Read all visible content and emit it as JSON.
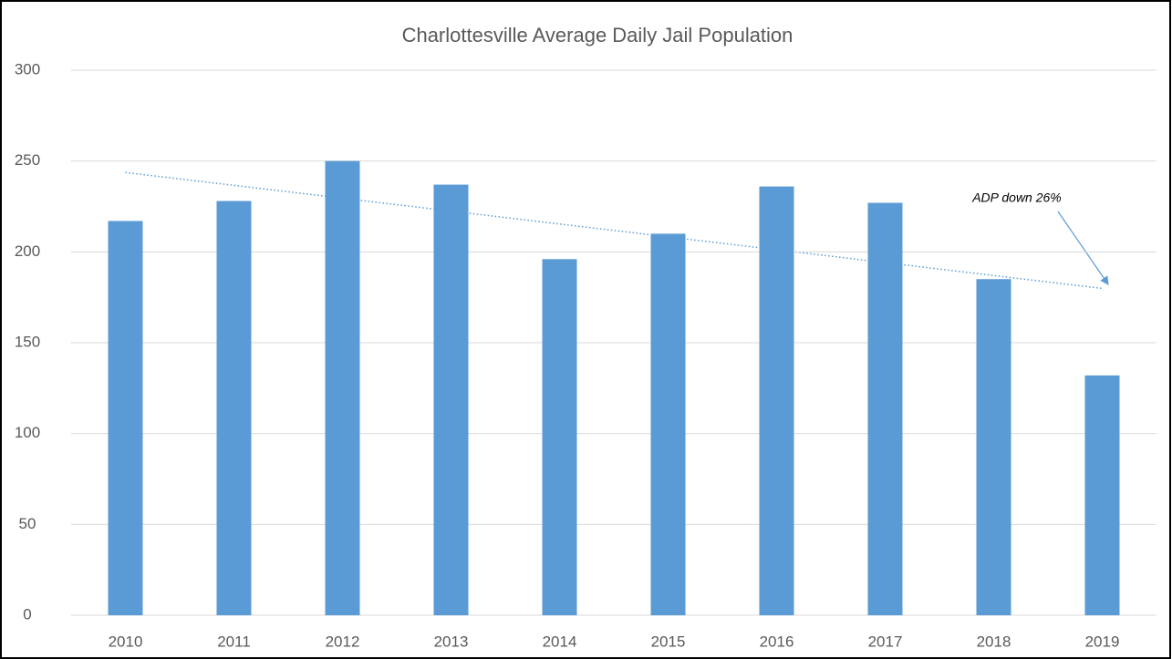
{
  "chart_data": {
    "type": "bar",
    "title": "Charlottesville Average Daily Jail Population",
    "categories": [
      "2010",
      "2011",
      "2012",
      "2013",
      "2014",
      "2015",
      "2016",
      "2017",
      "2018",
      "2019"
    ],
    "values": [
      217,
      228,
      250,
      237,
      196,
      210,
      236,
      227,
      185,
      132
    ],
    "color": "#5b9bd5",
    "ylim": [
      0,
      300
    ],
    "yticks": [
      0,
      50,
      100,
      150,
      200,
      250,
      300
    ],
    "grid": true,
    "trendline": true,
    "trendline_color": "#5b9bd5",
    "annotation": "ADP down 26%"
  }
}
